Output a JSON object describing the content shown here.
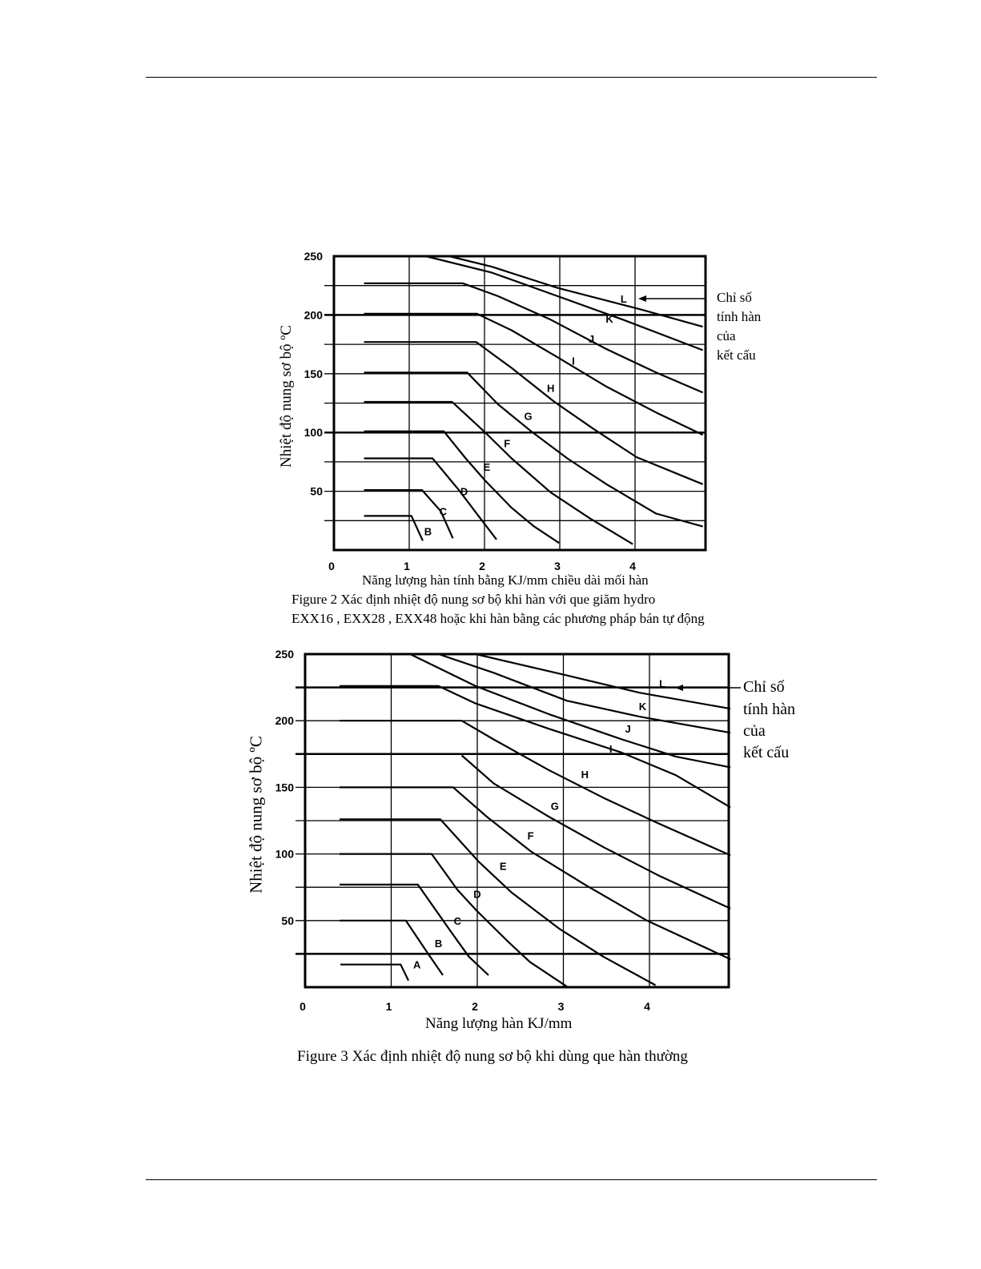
{
  "page": {
    "accent": "#000000"
  },
  "figure2": {
    "ylabel": "Nhiệt độ nung sơ bộ ºC",
    "xlabel": "Năng lượng hàn tính bằng KJ/mm chiều dài mối hàn",
    "caption_line1": "Figure 2 Xác định nhiệt độ nung sơ bộ khi hàn với que giăm hydro",
    "caption_line2": "EXX16 , EXX28 , EXX48 hoặc khi hàn bằng các phương pháp bán tự động",
    "annotation": [
      "Chỉ số",
      "tính hàn",
      "của",
      "kết cấu"
    ]
  },
  "figure3": {
    "ylabel": "Nhiệt độ nung sơ bộ ºC",
    "xlabel": "Năng lượng hàn KJ/mm",
    "caption": "Figure 3 Xác định nhiệt độ nung sơ bộ khi dùng que hàn thường",
    "annotation": [
      "Chỉ số",
      "tính hàn",
      "của",
      "kết cấu"
    ]
  },
  "chart_data": [
    {
      "type": "line",
      "title": "Figure 2 Xác định nhiệt độ nung sơ bộ khi hàn với que giăm hydro EXX16 , EXX28 , EXX48 hoặc khi hàn bằng các phương pháp bán tự động",
      "xlabel": "Năng lượng hàn tính bằng KJ/mm chiều dài mối hàn",
      "ylabel": "Nhiệt độ nung sơ bộ ºC",
      "xlim": [
        0,
        4.9
      ],
      "ylim": [
        0,
        250
      ],
      "xticks": [
        "0",
        "1",
        "2",
        "3",
        "4"
      ],
      "yticks": [
        "50",
        "100",
        "150",
        "200",
        "250"
      ],
      "hgrid": [
        25,
        50,
        75,
        100,
        125,
        150,
        175,
        200,
        225
      ],
      "thick_hgrid": [
        100,
        200
      ],
      "vgrid": [
        1,
        2,
        3,
        4
      ],
      "grid": true,
      "annotation_target": "L",
      "series": [
        {
          "name": "B",
          "points": [
            [
              0.4,
              29
            ],
            [
              1.03,
              29
            ],
            [
              1.18,
              8
            ]
          ],
          "label_at": [
            1.25,
            16
          ]
        },
        {
          "name": "C",
          "points": [
            [
              0.4,
              51
            ],
            [
              1.17,
              51
            ],
            [
              1.42,
              33
            ],
            [
              1.58,
              10
            ]
          ],
          "label_at": [
            1.45,
            33
          ]
        },
        {
          "name": "D",
          "points": [
            [
              0.4,
              78
            ],
            [
              1.31,
              78
            ],
            [
              1.66,
              51
            ],
            [
              1.92,
              29
            ],
            [
              2.16,
              9
            ]
          ],
          "label_at": [
            1.73,
            50
          ]
        },
        {
          "name": "E",
          "points": [
            [
              0.4,
              101
            ],
            [
              1.46,
              101
            ],
            [
              1.75,
              78
            ],
            [
              2.01,
              59
            ],
            [
              2.36,
              36
            ],
            [
              2.66,
              20
            ],
            [
              2.99,
              6
            ]
          ],
          "label_at": [
            2.03,
            71
          ]
        },
        {
          "name": "F",
          "points": [
            [
              0.4,
              126
            ],
            [
              1.57,
              126
            ],
            [
              2.01,
              100
            ],
            [
              2.36,
              78
            ],
            [
              2.88,
              49
            ],
            [
              3.4,
              27
            ],
            [
              3.97,
              5
            ]
          ],
          "label_at": [
            2.3,
            91
          ]
        },
        {
          "name": "G",
          "points": [
            [
              0.4,
              151
            ],
            [
              1.77,
              151
            ],
            [
              2.18,
              124
            ],
            [
              2.62,
              101
            ],
            [
              3.1,
              78
            ],
            [
              3.62,
              56
            ],
            [
              4.28,
              31
            ],
            [
              4.95,
              20
            ]
          ],
          "label_at": [
            2.58,
            114
          ]
        },
        {
          "name": "H",
          "points": [
            [
              0.4,
              177
            ],
            [
              1.89,
              177
            ],
            [
              2.36,
              155
            ],
            [
              2.93,
              126
            ],
            [
              3.45,
              103
            ],
            [
              4.02,
              79
            ],
            [
              4.95,
              56
            ]
          ],
          "label_at": [
            2.88,
            138
          ]
        },
        {
          "name": "I",
          "points": [
            [
              0.4,
              201
            ],
            [
              1.9,
              201
            ],
            [
              2.36,
              187
            ],
            [
              2.97,
              164
            ],
            [
              3.62,
              139
            ],
            [
              4.28,
              117
            ],
            [
              4.95,
              98
            ]
          ],
          "label_at": [
            3.18,
            161
          ]
        },
        {
          "name": "J",
          "points": [
            [
              0.4,
              227
            ],
            [
              1.71,
              227
            ],
            [
              2.18,
              216
            ],
            [
              2.88,
              196
            ],
            [
              3.62,
              171
            ],
            [
              4.28,
              151
            ],
            [
              4.95,
              134
            ]
          ],
          "label_at": [
            3.42,
            180
          ]
        },
        {
          "name": "K",
          "points": [
            [
              1.22,
              250
            ],
            [
              2.1,
              236
            ],
            [
              2.97,
              216
            ],
            [
              3.84,
              196
            ],
            [
              4.95,
              170
            ]
          ],
          "label_at": [
            3.66,
            197
          ]
        },
        {
          "name": "L",
          "points": [
            [
              1.53,
              250
            ],
            [
              2.1,
              241
            ],
            [
              2.97,
              223
            ],
            [
              4.06,
              205
            ],
            [
              4.95,
              190
            ]
          ],
          "label_at": [
            3.85,
            214
          ]
        }
      ]
    },
    {
      "type": "line",
      "title": "Figure 3 Xác định nhiệt độ nung sơ bộ khi dùng que hàn thường",
      "xlabel": "Năng lượng hàn KJ/mm",
      "ylabel": "Nhiệt độ nung sơ bộ ºC",
      "xlim": [
        0,
        4.94
      ],
      "ylim": [
        0,
        250
      ],
      "xticks": [
        "0",
        "1",
        "2",
        "3",
        "4"
      ],
      "yticks": [
        "50",
        "100",
        "150",
        "200",
        "250"
      ],
      "hgrid": [
        25,
        50,
        75,
        100,
        125,
        150,
        175,
        200,
        225
      ],
      "thick_hgrid": [
        25,
        175,
        225
      ],
      "vgrid": [
        1,
        2,
        3,
        4
      ],
      "grid": true,
      "annotation_target": "L",
      "series": [
        {
          "name": "A",
          "points": [
            [
              0.41,
              17
            ],
            [
              1.11,
              17
            ],
            [
              1.2,
              5
            ]
          ],
          "label_at": [
            1.3,
            17
          ]
        },
        {
          "name": "B",
          "points": [
            [
              0.4,
              50
            ],
            [
              1.17,
              50
            ],
            [
              1.43,
              25
            ],
            [
              1.6,
              9
            ]
          ],
          "label_at": [
            1.55,
            33
          ]
        },
        {
          "name": "C",
          "points": [
            [
              0.4,
              77
            ],
            [
              1.31,
              77
            ],
            [
              1.69,
              42
            ],
            [
              1.9,
              23
            ],
            [
              2.13,
              9
            ]
          ],
          "label_at": [
            1.77,
            50
          ]
        },
        {
          "name": "D",
          "points": [
            [
              0.4,
              100
            ],
            [
              1.47,
              100
            ],
            [
              1.77,
              73
            ],
            [
              2.0,
              57
            ],
            [
              2.36,
              34
            ],
            [
              2.61,
              19
            ],
            [
              3.04,
              0.5
            ]
          ],
          "label_at": [
            2.0,
            70
          ]
        },
        {
          "name": "E",
          "points": [
            [
              0.4,
              126
            ],
            [
              1.57,
              126
            ],
            [
              2.02,
              94
            ],
            [
              2.4,
              71
            ],
            [
              2.95,
              44
            ],
            [
              3.46,
              23
            ],
            [
              4.07,
              1.5
            ]
          ],
          "label_at": [
            2.3,
            91
          ]
        },
        {
          "name": "F",
          "points": [
            [
              0.4,
              150
            ],
            [
              1.72,
              150
            ],
            [
              2.11,
              128
            ],
            [
              2.62,
              102
            ],
            [
              3.25,
              77
            ],
            [
              3.97,
              50
            ],
            [
              4.95,
              21
            ]
          ],
          "label_at": [
            2.62,
            114
          ]
        },
        {
          "name": "G",
          "points": [
            [
              1.82,
              174
            ],
            [
              2.19,
              153
            ],
            [
              2.83,
              128
            ],
            [
              3.47,
              105
            ],
            [
              4.1,
              84
            ],
            [
              4.95,
              59
            ]
          ],
          "label_at": [
            2.9,
            136
          ]
        },
        {
          "name": "H",
          "points": [
            [
              0.4,
              200
            ],
            [
              1.82,
              200
            ],
            [
              2.19,
              186
            ],
            [
              2.83,
              163
            ],
            [
              3.47,
              142
            ],
            [
              4.1,
              123
            ],
            [
              4.95,
              99
            ]
          ],
          "label_at": [
            3.25,
            160
          ]
        },
        {
          "name": "I",
          "points": [
            [
              0.4,
              226
            ],
            [
              1.55,
              226
            ],
            [
              1.98,
              213
            ],
            [
              2.83,
              194
            ],
            [
              3.68,
              176
            ],
            [
              4.31,
              159
            ],
            [
              4.95,
              135
            ]
          ],
          "label_at": [
            3.55,
            179
          ]
        },
        {
          "name": "J",
          "points": [
            [
              1.22,
              250
            ],
            [
              1.98,
              226
            ],
            [
              2.83,
              205
            ],
            [
              3.68,
              186
            ],
            [
              4.31,
              173
            ],
            [
              4.95,
              165
            ]
          ],
          "label_at": [
            3.75,
            194
          ]
        },
        {
          "name": "K",
          "points": [
            [
              1.55,
              250
            ],
            [
              2.19,
              236
            ],
            [
              3.04,
              215
            ],
            [
              3.89,
              203
            ],
            [
              4.95,
              191
            ]
          ],
          "label_at": [
            3.92,
            211
          ]
        },
        {
          "name": "L",
          "points": [
            [
              1.98,
              250
            ],
            [
              3.04,
              234
            ],
            [
              3.89,
              221
            ],
            [
              4.95,
              209
            ]
          ],
          "label_at": [
            4.15,
            228
          ]
        }
      ]
    }
  ]
}
